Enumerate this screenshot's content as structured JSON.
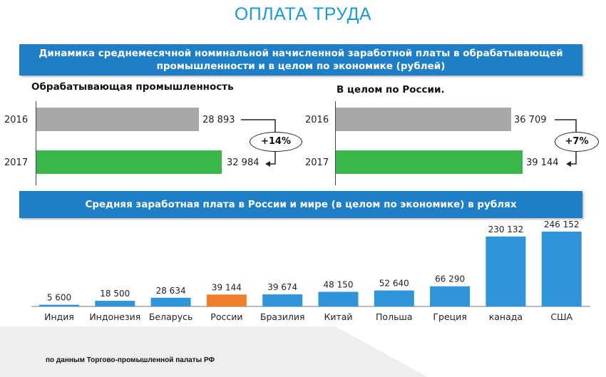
{
  "page_title": "ОПЛАТА ТРУДА",
  "banner1": "Динамика среднемесячной номинальной начисленной заработной платы в обрабатывающей промышленности и в целом по экономике (рублей)",
  "banner2": "Средняя заработная плата в России и мире (в целом по экономике) в рублях",
  "source_note": "по данным Торгово-промышленной палаты РФ",
  "colors": {
    "accent": "#1f7fc6",
    "title": "#1b9ad6",
    "gray_bar": "#a8a8a8",
    "green_bar": "#3ab64a",
    "blue_bar": "#2f95d8",
    "orange_bar": "#f07f2a"
  },
  "chart_data": [
    {
      "type": "bar",
      "orientation": "horizontal",
      "title": "Обрабатывающая промышленность",
      "categories": [
        "2016",
        "2017"
      ],
      "values": [
        28893,
        32984
      ],
      "value_labels": [
        "28 893",
        "32 984"
      ],
      "change_label": "+14%"
    },
    {
      "type": "bar",
      "orientation": "horizontal",
      "title": "В целом по России.",
      "categories": [
        "2016",
        "2017"
      ],
      "values": [
        36709,
        39144
      ],
      "value_labels": [
        "36 709",
        "39 144"
      ],
      "change_label": "+7%"
    },
    {
      "type": "bar",
      "title": "Средняя заработная плата в России и мире (в целом по экономике) в рублях",
      "categories": [
        "Индия",
        "Индонезия",
        "Беларусь",
        "России",
        "Бразилия",
        "Китай",
        "Польша",
        "Греция",
        "канада",
        "США"
      ],
      "values": [
        5600,
        18500,
        28634,
        39144,
        39674,
        48150,
        52640,
        66290,
        230132,
        246152
      ],
      "value_labels": [
        "5 600",
        "18 500",
        "28 634",
        "39 144",
        "39 674",
        "48 150",
        "52 640",
        "66 290",
        "230 132",
        "246 152"
      ],
      "highlight": "России",
      "ylim": [
        0,
        246152
      ]
    }
  ]
}
